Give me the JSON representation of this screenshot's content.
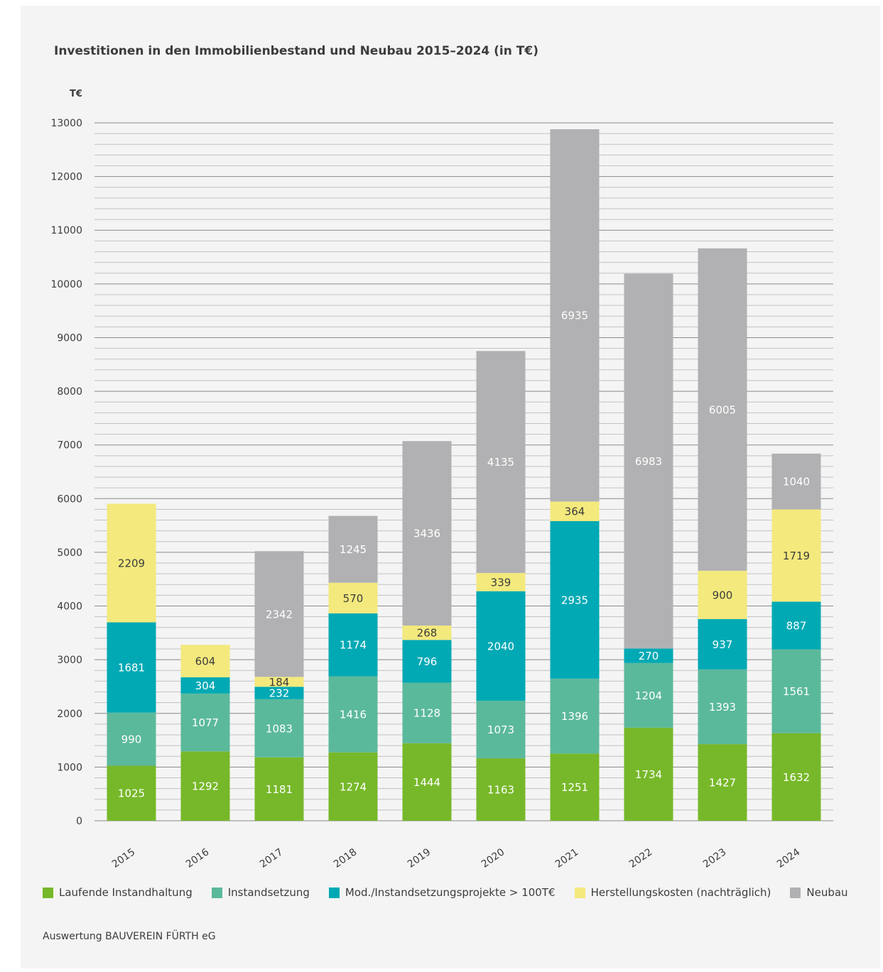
{
  "colors": {
    "panel_bg": "#f4f4f4",
    "text": "#3c3c3c",
    "grid_major": "#8a8a8a",
    "grid_minor": "#c2c2c2",
    "label_light": "#ffffff",
    "label_dark": "#3c3c3c"
  },
  "source": "Auswertung BAUVEREIN FÜRTH eG",
  "chart_data": {
    "type": "bar",
    "stacked": true,
    "title": "Investitionen in den Immobilienbestand und Neubau 2015–2024 (in T€)",
    "ylabel": "T€",
    "xlabel": "",
    "ylim": [
      0,
      13000
    ],
    "yticks": [
      0,
      1000,
      2000,
      3000,
      4000,
      5000,
      6000,
      7000,
      8000,
      9000,
      10000,
      11000,
      12000,
      13000
    ],
    "minor_grid_step": 200,
    "grid": true,
    "legend_position": "bottom",
    "categories": [
      "2015",
      "2016",
      "2017",
      "2018",
      "2019",
      "2020",
      "2021",
      "2022",
      "2023",
      "2024"
    ],
    "series": [
      {
        "name": "Laufende Instandhaltung",
        "color": "#77b82a",
        "label_color": "#ffffff",
        "values": [
          1025,
          1292,
          1181,
          1274,
          1444,
          1163,
          1251,
          1734,
          1427,
          1632
        ]
      },
      {
        "name": "Instandsetzung",
        "color": "#5bb99b",
        "label_color": "#ffffff",
        "values": [
          990,
          1077,
          1083,
          1416,
          1128,
          1073,
          1396,
          1204,
          1393,
          1561
        ]
      },
      {
        "name": "Mod./Instandsetzungsprojekte > 100T€",
        "color": "#00a9b4",
        "label_color": "#ffffff",
        "values": [
          1681,
          304,
          232,
          1174,
          796,
          2040,
          2935,
          270,
          937,
          887
        ]
      },
      {
        "name": "Herstellungskosten (nachträglich)",
        "color": "#f3e97d",
        "label_color": "#3c3c3c",
        "values": [
          2209,
          604,
          184,
          570,
          268,
          339,
          364,
          null,
          900,
          1719
        ]
      },
      {
        "name": "Neubau",
        "color": "#b1b1b3",
        "label_color": "#ffffff",
        "values": [
          null,
          null,
          2342,
          1245,
          3436,
          4135,
          6935,
          6983,
          6005,
          1040
        ]
      }
    ]
  }
}
